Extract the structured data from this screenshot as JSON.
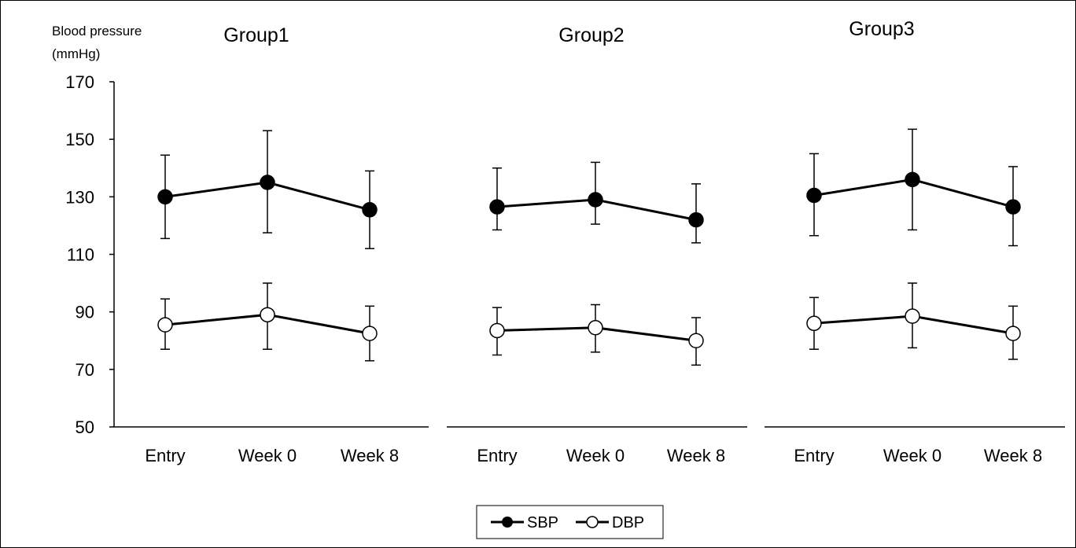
{
  "chart_data": {
    "type": "line",
    "ylabel_line1": "Blood pressure",
    "ylabel_line2": "(mmHg)",
    "ylim": [
      50,
      170
    ],
    "yticks": [
      "50",
      "70",
      "90",
      "110",
      "130",
      "150",
      "170"
    ],
    "categories": [
      "Entry",
      "Week 0",
      "Week 8"
    ],
    "grid": false,
    "legend_position": "bottom-center",
    "legend": [
      "SBP",
      "DBP"
    ],
    "panels": [
      {
        "title": "Group1",
        "series": [
          {
            "name": "SBP",
            "marker": "filled-circle",
            "values": [
              130,
              135,
              125.5
            ],
            "err_upper": [
              144.5,
              153,
              139
            ],
            "err_lower": [
              115.5,
              117.5,
              112
            ]
          },
          {
            "name": "DBP",
            "marker": "open-circle",
            "values": [
              85.5,
              89,
              82.5
            ],
            "err_upper": [
              94.5,
              100,
              92
            ],
            "err_lower": [
              77,
              77,
              73
            ]
          }
        ]
      },
      {
        "title": "Group2",
        "series": [
          {
            "name": "SBP",
            "marker": "filled-circle",
            "values": [
              126.5,
              129,
              122
            ],
            "err_upper": [
              140,
              142,
              134.5
            ],
            "err_lower": [
              118.5,
              120.5,
              114
            ]
          },
          {
            "name": "DBP",
            "marker": "open-circle",
            "values": [
              83.5,
              84.5,
              80
            ],
            "err_upper": [
              91.5,
              92.5,
              88
            ],
            "err_lower": [
              75,
              76,
              71.5
            ]
          }
        ]
      },
      {
        "title": "Group3",
        "series": [
          {
            "name": "SBP",
            "marker": "filled-circle",
            "values": [
              130.5,
              136,
              126.5
            ],
            "err_upper": [
              145,
              153.5,
              140.5
            ],
            "err_lower": [
              116.5,
              118.5,
              113
            ]
          },
          {
            "name": "DBP",
            "marker": "open-circle",
            "values": [
              86,
              88.5,
              82.5
            ],
            "err_upper": [
              95,
              100,
              92
            ],
            "err_lower": [
              77,
              77.5,
              73.5
            ]
          }
        ]
      }
    ]
  }
}
